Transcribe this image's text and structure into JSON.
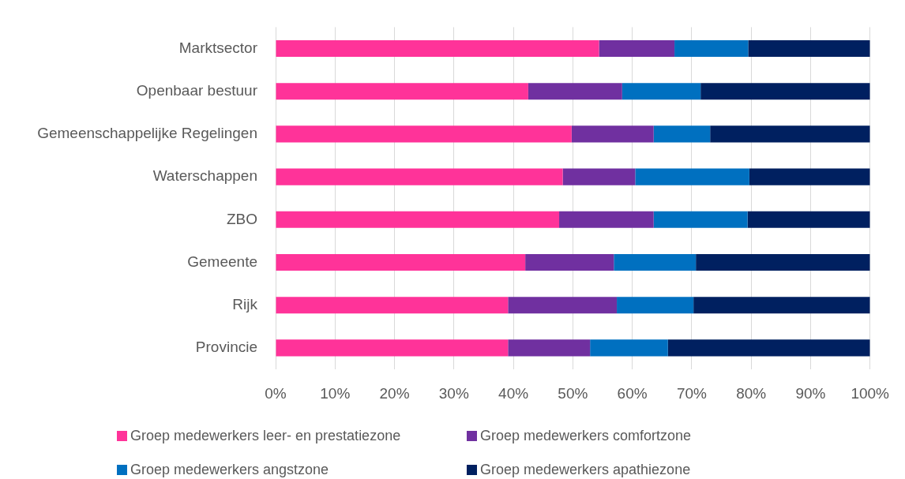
{
  "chart_data": {
    "type": "bar",
    "orientation": "horizontal",
    "stacked": true,
    "categories": [
      "Marktsector",
      "Openbaar bestuur",
      "Gemeenschappelijke Regelingen",
      "Waterschappen",
      "ZBO",
      "Gemeente",
      "Rijk",
      "Provincie"
    ],
    "series": [
      {
        "name": "Groep medewerkers leer- en prestatiezone",
        "color": "#ff3399",
        "values": [
          54.4,
          42.5,
          49.8,
          48.3,
          47.7,
          42.0,
          39.1,
          39.1
        ]
      },
      {
        "name": "Groep medewerkers comfortzone",
        "color": "#7030a0",
        "values": [
          12.7,
          15.8,
          13.8,
          12.2,
          15.9,
          14.9,
          18.3,
          13.8
        ]
      },
      {
        "name": "Groep medewerkers angstzone",
        "color": "#0070c0",
        "values": [
          12.4,
          13.2,
          9.5,
          19.2,
          15.8,
          13.8,
          12.9,
          13.1
        ]
      },
      {
        "name": "Groep medewerkers apathiezone",
        "color": "#002060",
        "values": [
          20.5,
          28.5,
          26.9,
          20.3,
          20.6,
          29.3,
          29.7,
          34.0
        ]
      }
    ],
    "xlim": [
      0,
      100
    ],
    "xticks": [
      {
        "value": 0,
        "label": "0%"
      },
      {
        "value": 10,
        "label": "10%"
      },
      {
        "value": 20,
        "label": "20%"
      },
      {
        "value": 30,
        "label": "30%"
      },
      {
        "value": 40,
        "label": "40%"
      },
      {
        "value": 50,
        "label": "50%"
      },
      {
        "value": 60,
        "label": "60%"
      },
      {
        "value": 70,
        "label": "70%"
      },
      {
        "value": 80,
        "label": "80%"
      },
      {
        "value": 90,
        "label": "90%"
      },
      {
        "value": 100,
        "label": "100%"
      }
    ],
    "grid": "x",
    "legend": "bottom"
  }
}
